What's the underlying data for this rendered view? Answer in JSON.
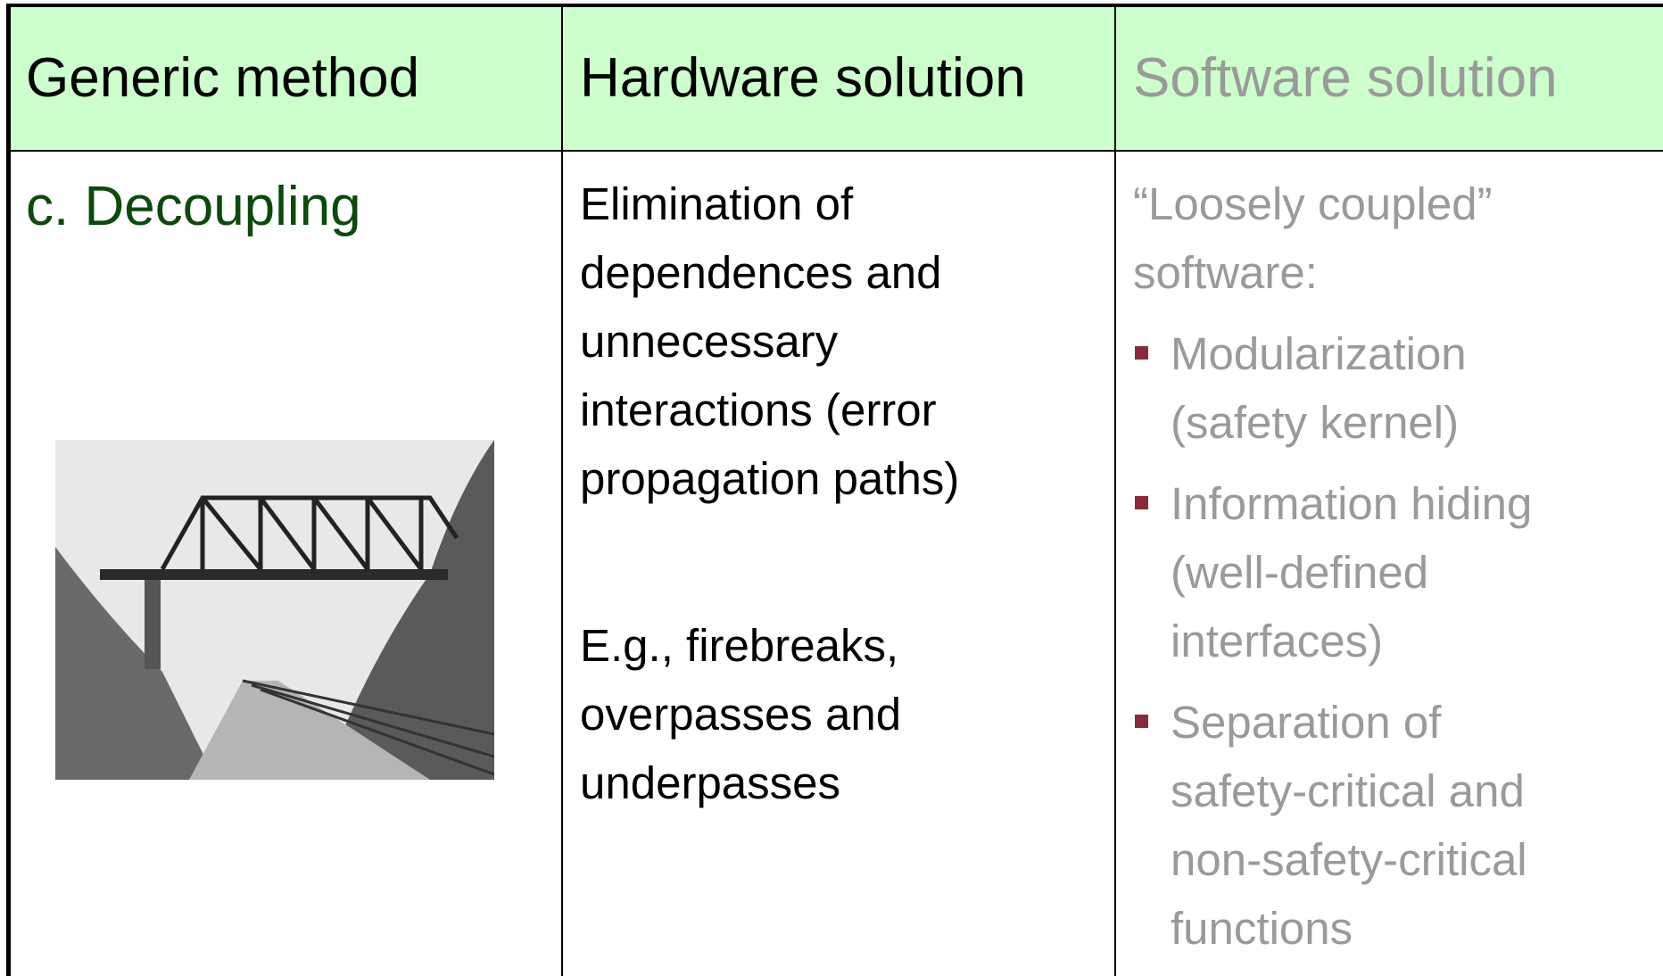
{
  "table": {
    "header": [
      "Generic method",
      "Hardware solution",
      "Software solution"
    ],
    "rows": [
      {
        "method": "c. Decoupling",
        "hardware": [
          "Elimination of dependences and unnecessary interactions (error propagation paths)",
          "E.g., firebreaks, overpasses and underpasses"
        ],
        "software": {
          "intro": "“Loosely coupled” software:",
          "bullets": [
            "Modularization (safety kernel)",
            "Information hiding (well-defined interfaces)",
            "Separation of safety-critical and non-safety-critical functions"
          ]
        }
      }
    ]
  }
}
